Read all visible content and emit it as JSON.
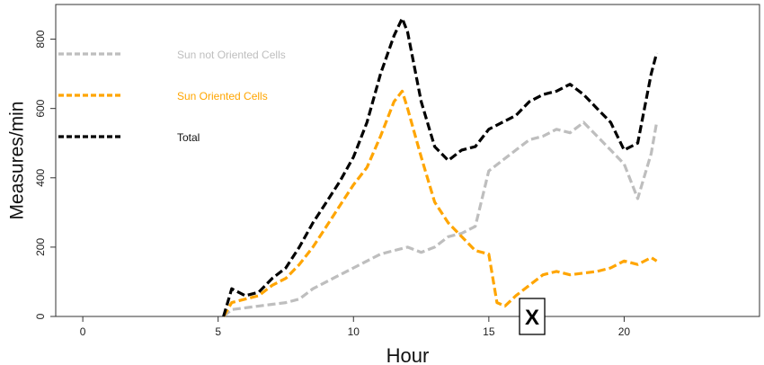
{
  "chart_data": {
    "type": "line",
    "xlabel": "Hour",
    "ylabel": "Measures/min",
    "xlim": [
      -1,
      25
    ],
    "ylim": [
      0,
      900
    ],
    "x_ticks": [
      0,
      5,
      10,
      15,
      20
    ],
    "y_ticks": [
      0,
      200,
      400,
      600,
      800
    ],
    "legend": {
      "placement": "top-left",
      "entries": [
        {
          "label": "Sun not Oriented Cells",
          "color": "#BEBEBE"
        },
        {
          "label": "Sun Oriented Cells",
          "color": "#FFA500"
        },
        {
          "label": "Total",
          "color": "#000000"
        }
      ]
    },
    "marker": {
      "label": "X",
      "x": 16.6
    },
    "series": [
      {
        "name": "Sun not Oriented Cells",
        "color": "#BEBEBE",
        "x": [
          5.2,
          5.5,
          6.0,
          6.5,
          7.0,
          7.5,
          8.0,
          8.5,
          9.0,
          9.5,
          10.0,
          10.5,
          11.0,
          11.5,
          12.0,
          12.5,
          13.0,
          13.5,
          14.0,
          14.5,
          15.0,
          15.5,
          16.0,
          16.5,
          17.0,
          17.5,
          18.0,
          18.5,
          19.0,
          19.5,
          20.0,
          20.5,
          21.0,
          21.2
        ],
        "y": [
          0,
          20,
          25,
          30,
          35,
          40,
          50,
          80,
          100,
          120,
          140,
          160,
          180,
          190,
          200,
          185,
          200,
          230,
          240,
          260,
          420,
          450,
          480,
          510,
          520,
          540,
          530,
          560,
          520,
          480,
          440,
          340,
          470,
          560
        ]
      },
      {
        "name": "Sun Oriented Cells",
        "color": "#FFA500",
        "x": [
          5.2,
          5.5,
          6.0,
          6.5,
          7.0,
          7.5,
          8.0,
          8.5,
          9.0,
          9.5,
          10.0,
          10.5,
          11.0,
          11.5,
          11.8,
          12.0,
          12.5,
          13.0,
          13.5,
          14.0,
          14.5,
          15.0,
          15.3,
          15.6,
          16.0,
          16.5,
          17.0,
          17.5,
          18.0,
          18.5,
          19.0,
          19.5,
          20.0,
          20.5,
          21.0,
          21.2
        ],
        "y": [
          0,
          40,
          50,
          60,
          90,
          110,
          150,
          200,
          260,
          320,
          380,
          430,
          520,
          620,
          650,
          600,
          460,
          330,
          270,
          230,
          190,
          180,
          40,
          30,
          60,
          90,
          120,
          130,
          120,
          125,
          130,
          140,
          160,
          150,
          170,
          160
        ]
      },
      {
        "name": "Total",
        "color": "#000000",
        "x": [
          5.2,
          5.5,
          6.0,
          6.5,
          7.0,
          7.5,
          8.0,
          8.5,
          9.0,
          9.5,
          10.0,
          10.5,
          11.0,
          11.5,
          11.8,
          12.0,
          12.5,
          13.0,
          13.5,
          14.0,
          14.5,
          15.0,
          15.5,
          16.0,
          16.5,
          17.0,
          17.5,
          18.0,
          18.5,
          19.0,
          19.5,
          20.0,
          20.5,
          21.0,
          21.2
        ],
        "y": [
          0,
          80,
          60,
          70,
          110,
          140,
          200,
          270,
          330,
          390,
          460,
          560,
          700,
          810,
          860,
          820,
          620,
          490,
          450,
          480,
          490,
          540,
          560,
          580,
          620,
          640,
          650,
          670,
          640,
          600,
          560,
          480,
          500,
          700,
          760
        ]
      }
    ]
  }
}
